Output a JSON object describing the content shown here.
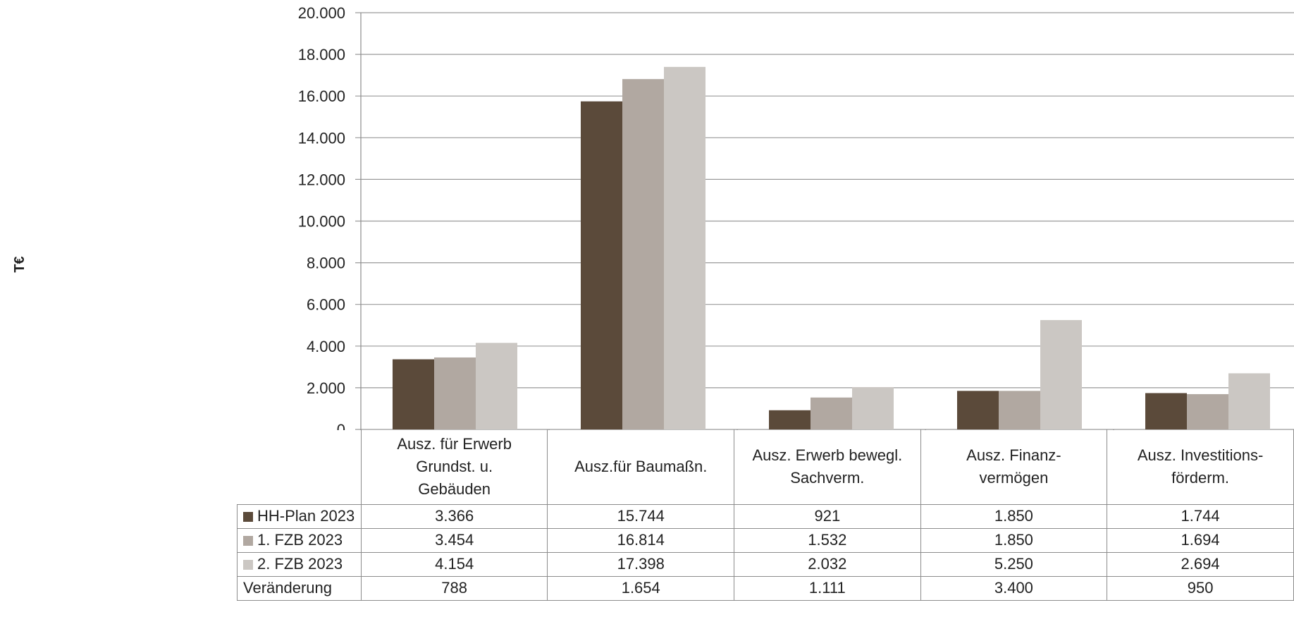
{
  "chart_data": {
    "type": "bar",
    "ylabel": "T€",
    "ylim": [
      0,
      20000
    ],
    "yticks": [
      "0",
      "2.000",
      "4.000",
      "6.000",
      "8.000",
      "10.000",
      "12.000",
      "14.000",
      "16.000",
      "18.000",
      "20.000"
    ],
    "categories": [
      [
        "Ausz. für  Erwerb",
        "Grundst. u.",
        "Gebäuden"
      ],
      [
        "Ausz.für Baumaßn."
      ],
      [
        "Ausz. Erwerb  bewegl.",
        "Sachverm."
      ],
      [
        "Ausz. Finanz-",
        "vermögen"
      ],
      [
        "Ausz. Investitions-",
        "förderm."
      ]
    ],
    "series": [
      {
        "name": "HH-Plan 2023",
        "color": "#5b4a3a",
        "values": [
          3366,
          15744,
          921,
          1850,
          1744
        ],
        "labels": [
          "3.366",
          "15.744",
          "921",
          "1.850",
          "1.744"
        ]
      },
      {
        "name": "1. FZB 2023",
        "color": "#b1a8a1",
        "values": [
          3454,
          16814,
          1532,
          1850,
          1694
        ],
        "labels": [
          "3.454",
          "16.814",
          "1.532",
          "1.850",
          "1.694"
        ]
      },
      {
        "name": "2. FZB 2023",
        "color": "#cbc7c3",
        "values": [
          4154,
          17398,
          2032,
          5250,
          2694
        ],
        "labels": [
          "4.154",
          "17.398",
          "2.032",
          "5.250",
          "2.694"
        ]
      }
    ],
    "extra_row": {
      "name": "Veränderung",
      "labels": [
        "788",
        "1.654",
        "1.111",
        "3.400",
        "950"
      ]
    },
    "grid": true
  }
}
